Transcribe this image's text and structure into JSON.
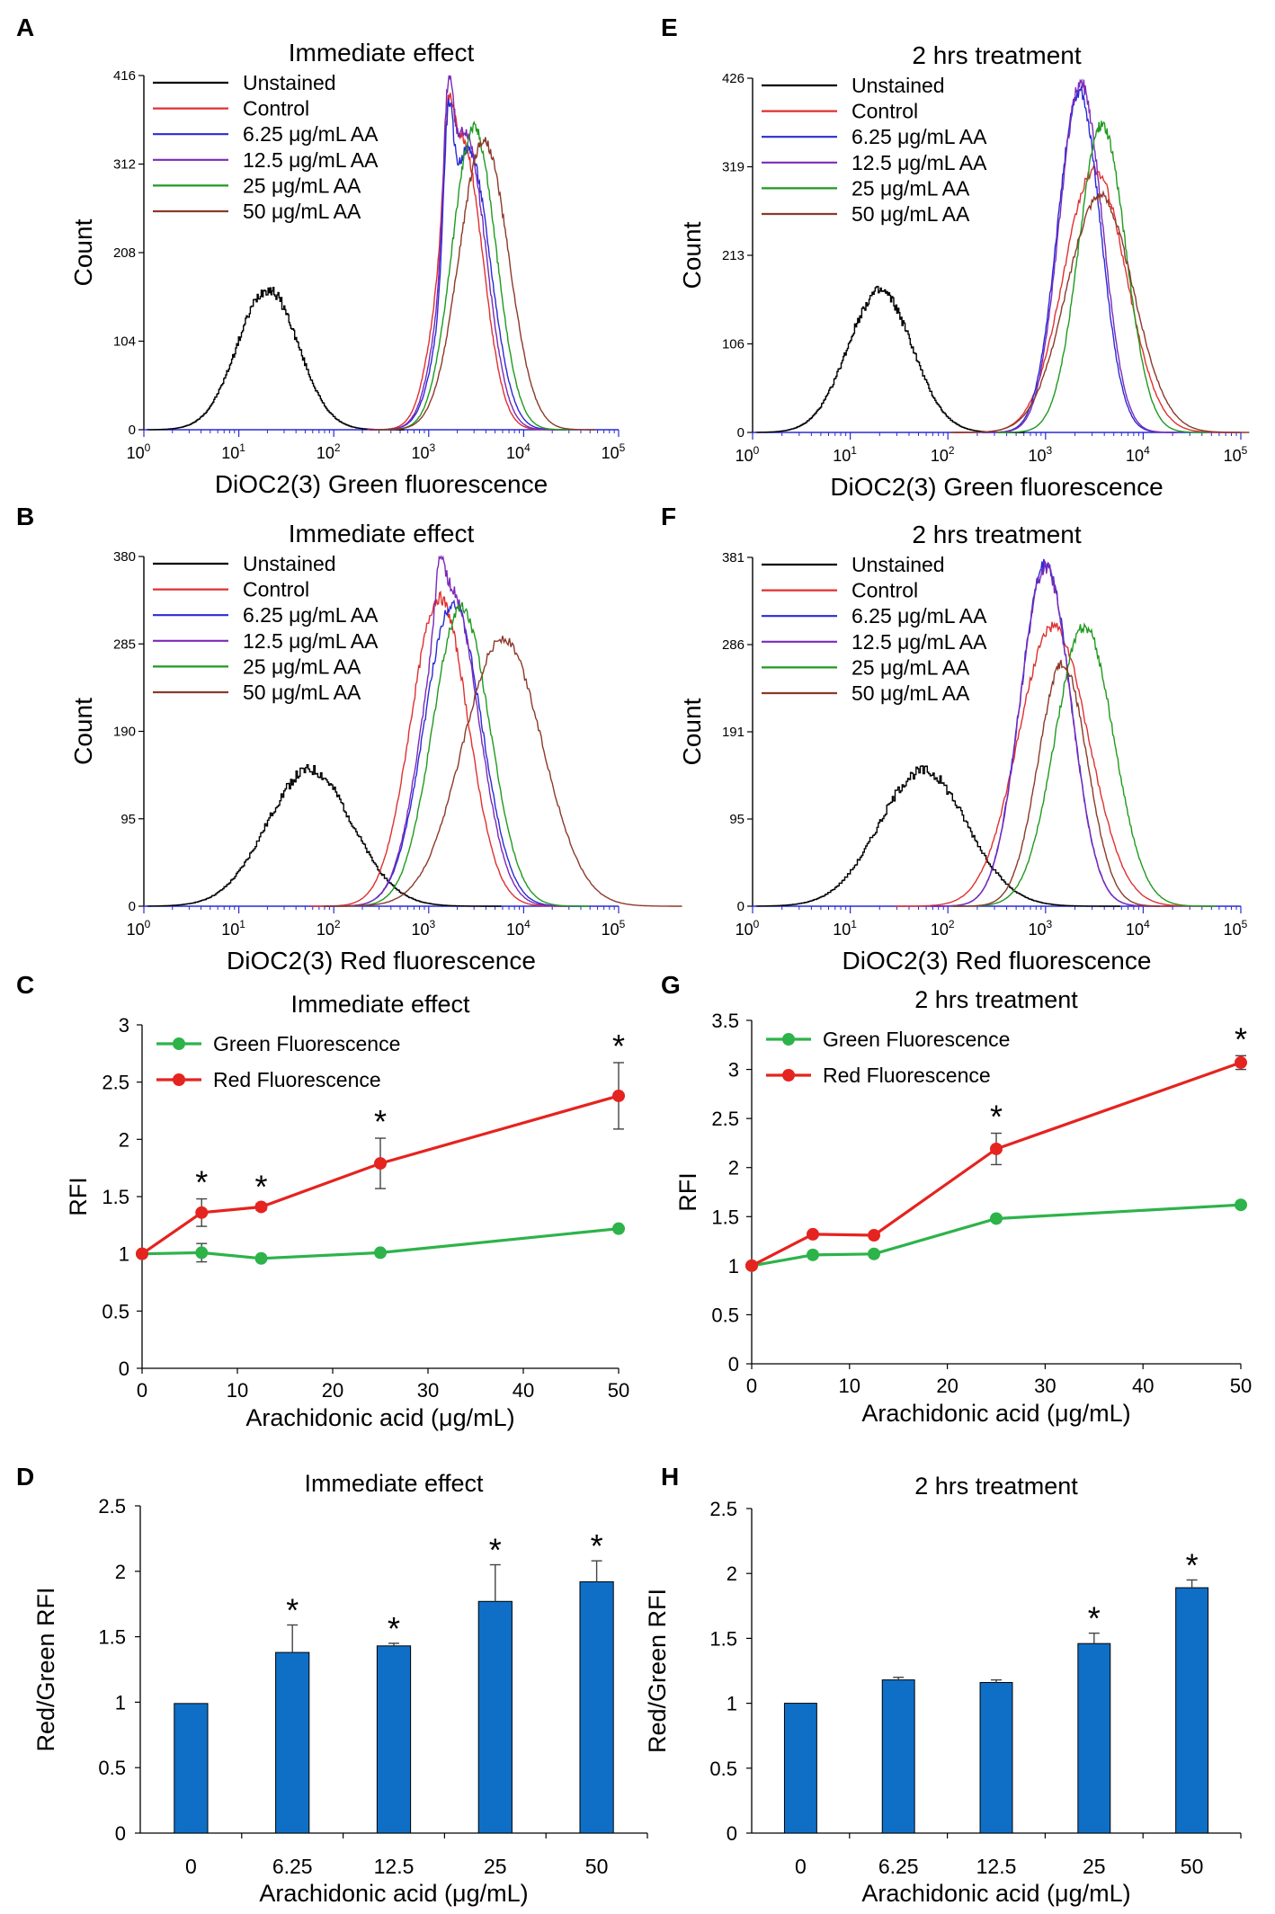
{
  "figure_id": "arachidonic-acid-dioc2-figure",
  "chart_data": [
    {
      "panel": "A",
      "type": "histogram",
      "title": "Immediate effect",
      "xlabel": "DiOC2(3) Green fluorescence",
      "ylabel": "Count",
      "xscale": "log",
      "xlim": [
        1,
        100000
      ],
      "ylim": [
        0,
        416
      ],
      "yticks": [
        "0",
        "104",
        "208",
        "312",
        "416"
      ],
      "xticks": [
        {
          "base": "10",
          "exp": "0"
        },
        {
          "base": "10",
          "exp": "1"
        },
        {
          "base": "10",
          "exp": "2"
        },
        {
          "base": "10",
          "exp": "3"
        },
        {
          "base": "10",
          "exp": "4"
        },
        {
          "base": "10",
          "exp": "5"
        }
      ],
      "legend_position": "top-left",
      "series": [
        {
          "name": "Unstained",
          "color": "#000000",
          "peak_x": 20,
          "peak_y": 165,
          "spread": 0.32,
          "step": true
        },
        {
          "name": "Control",
          "color": "#e03030",
          "peak_x": 2200,
          "peak_y": 345,
          "spread": 0.22,
          "shoulder_x": 1600,
          "shoulder_y": 385
        },
        {
          "name": "6.25 μg/mL AA",
          "color": "#2a2ad6",
          "peak_x": 2600,
          "peak_y": 330,
          "spread": 0.23,
          "shoulder_x": 1600,
          "shoulder_y": 380
        },
        {
          "name": "12.5 μg/mL AA",
          "color": "#7a2ab8",
          "peak_x": 2400,
          "peak_y": 350,
          "spread": 0.22,
          "shoulder_x": 1600,
          "shoulder_y": 412
        },
        {
          "name": "25 μg/mL AA",
          "color": "#1f9a1f",
          "peak_x": 3000,
          "peak_y": 355,
          "spread": 0.23
        },
        {
          "name": "50 μg/mL AA",
          "color": "#8b3a2a",
          "peak_x": 3800,
          "peak_y": 340,
          "spread": 0.26
        }
      ]
    },
    {
      "panel": "B",
      "type": "histogram",
      "title": "Immediate effect",
      "xlabel": "DiOC2(3) Red fluorescence",
      "ylabel": "Count",
      "xscale": "log",
      "xlim": [
        1,
        100000
      ],
      "ylim": [
        0,
        380
      ],
      "yticks": [
        "0",
        "95",
        "190",
        "285",
        "380"
      ],
      "xticks": [
        {
          "base": "10",
          "exp": "0"
        },
        {
          "base": "10",
          "exp": "1"
        },
        {
          "base": "10",
          "exp": "2"
        },
        {
          "base": "10",
          "exp": "3"
        },
        {
          "base": "10",
          "exp": "4"
        },
        {
          "base": "10",
          "exp": "5"
        }
      ],
      "legend_position": "top-left",
      "series": [
        {
          "name": "Unstained",
          "color": "#000000",
          "peak_x": 55,
          "peak_y": 148,
          "spread": 0.45,
          "step": true
        },
        {
          "name": "Control",
          "color": "#e03030",
          "peak_x": 1300,
          "peak_y": 335,
          "spread": 0.3
        },
        {
          "name": "6.25 μg/mL AA",
          "color": "#2a2ad6",
          "peak_x": 1800,
          "peak_y": 330,
          "spread": 0.3
        },
        {
          "name": "12.5 μg/mL AA",
          "color": "#7a2ab8",
          "peak_x": 1700,
          "peak_y": 345,
          "spread": 0.29,
          "shoulder_x": 1300,
          "shoulder_y": 378
        },
        {
          "name": "25 μg/mL AA",
          "color": "#1f9a1f",
          "peak_x": 2200,
          "peak_y": 325,
          "spread": 0.3
        },
        {
          "name": "50 μg/mL AA",
          "color": "#8b3a2a",
          "peak_x": 6000,
          "peak_y": 290,
          "spread": 0.42
        }
      ]
    },
    {
      "panel": "C",
      "type": "line",
      "title": "Immediate effect",
      "xlabel": "Arachidonic acid (μg/mL)",
      "ylabel": "RFI",
      "xlim": [
        0,
        50
      ],
      "ylim": [
        0,
        3
      ],
      "xticks": [
        "0",
        "10",
        "20",
        "30",
        "40",
        "50"
      ],
      "yticks": [
        "0",
        "0.5",
        "1",
        "1.5",
        "2",
        "2.5",
        "3"
      ],
      "legend_position": "top-left",
      "x": [
        0,
        6.25,
        12.5,
        25,
        50
      ],
      "series": [
        {
          "name": "Green Fluorescence",
          "color": "#2db34a",
          "values": [
            1.0,
            1.01,
            0.96,
            1.01,
            1.22
          ],
          "errors": [
            0,
            0.08,
            0.02,
            0.02,
            0.02
          ],
          "stars": [
            false,
            false,
            false,
            false,
            false
          ]
        },
        {
          "name": "Red Fluorescence",
          "color": "#e5231f",
          "values": [
            1.0,
            1.36,
            1.41,
            1.79,
            2.38
          ],
          "errors": [
            0,
            0.12,
            0.03,
            0.22,
            0.29
          ],
          "stars": [
            false,
            true,
            true,
            true,
            true
          ]
        }
      ],
      "star_label": "*"
    },
    {
      "panel": "D",
      "type": "bar",
      "title": "Immediate effect",
      "xlabel": "Arachidonic acid (μg/mL)",
      "ylabel": "Red/Green RFI",
      "ylim": [
        0,
        2.5
      ],
      "yticks": [
        "0",
        "0.5",
        "1",
        "1.5",
        "2",
        "2.5"
      ],
      "categories": [
        "0",
        "6.25",
        "12.5",
        "25",
        "50"
      ],
      "values": [
        0.99,
        1.38,
        1.43,
        1.77,
        1.92
      ],
      "errors": [
        0.01,
        0.21,
        0.02,
        0.28,
        0.16
      ],
      "stars": [
        false,
        true,
        true,
        true,
        true
      ],
      "star_label": "*",
      "color": "#0f6fc6"
    },
    {
      "panel": "E",
      "type": "histogram",
      "title": "2 hrs treatment",
      "xlabel": "DiOC2(3) Green fluorescence",
      "ylabel": "Count",
      "xscale": "log",
      "xlim": [
        1,
        100000
      ],
      "ylim": [
        0,
        426
      ],
      "yticks": [
        "0",
        "106",
        "213",
        "319",
        "426"
      ],
      "xticks": [
        {
          "base": "10",
          "exp": "0"
        },
        {
          "base": "10",
          "exp": "1"
        },
        {
          "base": "10",
          "exp": "2"
        },
        {
          "base": "10",
          "exp": "3"
        },
        {
          "base": "10",
          "exp": "4"
        },
        {
          "base": "10",
          "exp": "5"
        }
      ],
      "legend_position": "top-left",
      "series": [
        {
          "name": "Unstained",
          "color": "#000000",
          "peak_x": 20,
          "peak_y": 170,
          "spread": 0.33,
          "step": true
        },
        {
          "name": "Control",
          "color": "#e03030",
          "peak_x": 3200,
          "peak_y": 315,
          "spread": 0.32
        },
        {
          "name": "6.25 μg/mL AA",
          "color": "#2a2ad6",
          "peak_x": 2200,
          "peak_y": 410,
          "spread": 0.22
        },
        {
          "name": "12.5 μg/mL AA",
          "color": "#7a2ab8",
          "peak_x": 2300,
          "peak_y": 420,
          "spread": 0.22
        },
        {
          "name": "25 μg/mL AA",
          "color": "#1f9a1f",
          "peak_x": 3800,
          "peak_y": 370,
          "spread": 0.24
        },
        {
          "name": "50 μg/mL AA",
          "color": "#8b3a2a",
          "peak_x": 3600,
          "peak_y": 285,
          "spread": 0.34
        }
      ]
    },
    {
      "panel": "F",
      "type": "histogram",
      "title": "2 hrs treatment",
      "xlabel": "DiOC2(3) Red fluorescence",
      "ylabel": "Count",
      "xscale": "log",
      "xlim": [
        1,
        100000
      ],
      "ylim": [
        0,
        381
      ],
      "yticks": [
        "0",
        "95",
        "191",
        "286",
        "381"
      ],
      "xticks": [
        {
          "base": "10",
          "exp": "0"
        },
        {
          "base": "10",
          "exp": "1"
        },
        {
          "base": "10",
          "exp": "2"
        },
        {
          "base": "10",
          "exp": "3"
        },
        {
          "base": "10",
          "exp": "4"
        },
        {
          "base": "10",
          "exp": "5"
        }
      ],
      "legend_position": "top-left",
      "series": [
        {
          "name": "Unstained",
          "color": "#000000",
          "peak_x": 55,
          "peak_y": 148,
          "spread": 0.45,
          "step": true
        },
        {
          "name": "Control",
          "color": "#e03030",
          "peak_x": 1200,
          "peak_y": 305,
          "spread": 0.36
        },
        {
          "name": "6.25 μg/mL AA",
          "color": "#2a2ad6",
          "peak_x": 1000,
          "peak_y": 375,
          "spread": 0.26
        },
        {
          "name": "12.5 μg/mL AA",
          "color": "#7a2ab8",
          "peak_x": 1000,
          "peak_y": 370,
          "spread": 0.26
        },
        {
          "name": "25 μg/mL AA",
          "color": "#1f9a1f",
          "peak_x": 2500,
          "peak_y": 305,
          "spread": 0.3
        },
        {
          "name": "50 μg/mL AA",
          "color": "#8b3a2a",
          "peak_x": 1500,
          "peak_y": 265,
          "spread": 0.25
        }
      ]
    },
    {
      "panel": "G",
      "type": "line",
      "title": "2 hrs treatment",
      "xlabel": "Arachidonic acid (μg/mL)",
      "ylabel": "RFI",
      "xlim": [
        0,
        50
      ],
      "ylim": [
        0,
        3.5
      ],
      "xticks": [
        "0",
        "10",
        "20",
        "30",
        "40",
        "50"
      ],
      "yticks": [
        "0",
        "0.5",
        "1",
        "1.5",
        "2",
        "2.5",
        "3",
        "3.5"
      ],
      "legend_position": "top-left",
      "x": [
        0,
        6.25,
        12.5,
        25,
        50
      ],
      "series": [
        {
          "name": "Green Fluorescence",
          "color": "#2db34a",
          "values": [
            1.0,
            1.11,
            1.12,
            1.48,
            1.62
          ],
          "errors": [
            0,
            0.01,
            0.01,
            0.02,
            0.02
          ],
          "stars": [
            false,
            false,
            false,
            false,
            false
          ]
        },
        {
          "name": "Red Fluorescence",
          "color": "#e5231f",
          "values": [
            1.0,
            1.32,
            1.31,
            2.19,
            3.07
          ],
          "errors": [
            0,
            0.01,
            0.01,
            0.16,
            0.07
          ],
          "stars": [
            false,
            false,
            false,
            true,
            true
          ]
        }
      ],
      "star_label": "*"
    },
    {
      "panel": "H",
      "type": "bar",
      "title": "2 hrs treatment",
      "xlabel": "Arachidonic acid (μg/mL)",
      "ylabel": "Red/Green RFI",
      "ylim": [
        0,
        2.5
      ],
      "yticks": [
        "0",
        "0.5",
        "1",
        "1.5",
        "2",
        "2.5"
      ],
      "categories": [
        "0",
        "6.25",
        "12.5",
        "25",
        "50"
      ],
      "values": [
        1.0,
        1.18,
        1.16,
        1.46,
        1.89
      ],
      "errors": [
        0.01,
        0.02,
        0.02,
        0.08,
        0.06
      ],
      "stars": [
        false,
        false,
        false,
        true,
        true
      ],
      "star_label": "*",
      "color": "#0f6fc6"
    }
  ]
}
